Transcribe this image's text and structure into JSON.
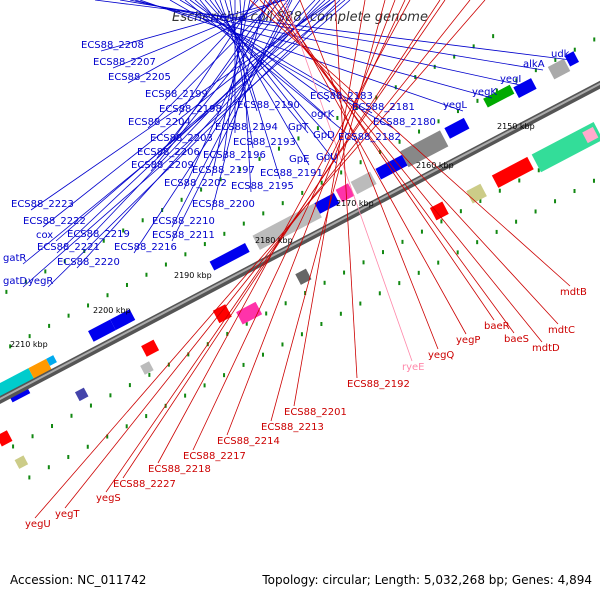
{
  "title": "Escherichia coli S88, complete genome",
  "footer": {
    "accession": "Accession: NC_011742",
    "summary": "Topology: circular; Length: 5,032,268 bp; Genes: 4,894"
  },
  "colors": {
    "forward_label": "#0000cc",
    "reverse_label": "#cc0000",
    "rna_label": "#ff88aa",
    "backbone": "#777777",
    "tick": "#118811"
  },
  "scale_labels": [
    "2150 kbp",
    "2160 kbp",
    "2170 kbp",
    "2180 kbp",
    "2190 kbp",
    "2200 kbp",
    "2210 kbp"
  ],
  "forward_genes": [
    "udk",
    "alkA",
    "yegI",
    "yegK",
    "yegL",
    "ECS88_2180",
    "ECS88_2181",
    "ECS88_2182",
    "ECS88_2183",
    "ogrK",
    "GpT",
    "GpD",
    "GpU",
    "GpE",
    "ECS88_2190",
    "ECS88_2191",
    "ECS88_2193",
    "ECS88_2194",
    "ECS88_2195",
    "ECS88_2196",
    "ECS88_2197",
    "ECS88_2198",
    "ECS88_2199",
    "ECS88_2200",
    "ECS88_2202",
    "ECS88_2203",
    "ECS88_2204",
    "ECS88_2205",
    "ECS88_2206",
    "ECS88_2207",
    "ECS88_2208",
    "ECS88_2209",
    "ECS88_2210",
    "ECS88_2211",
    "ECS88_2216",
    "ECS88_2219",
    "ECS88_2220",
    "ECS88_2221",
    "ECS88_2222",
    "ECS88_2223",
    "cox",
    "gatR",
    "gatD",
    "yegR"
  ],
  "reverse_genes": [
    "mdtB",
    "mdtC",
    "mdtD",
    "baeS",
    "baeR",
    "yegP",
    "yegQ",
    "ryeE",
    "ECS88_2192",
    "ECS88_2201",
    "ECS88_2213",
    "ECS88_2214",
    "ECS88_2217",
    "ECS88_2218",
    "ECS88_2227",
    "yegS",
    "yegT",
    "yegU"
  ]
}
